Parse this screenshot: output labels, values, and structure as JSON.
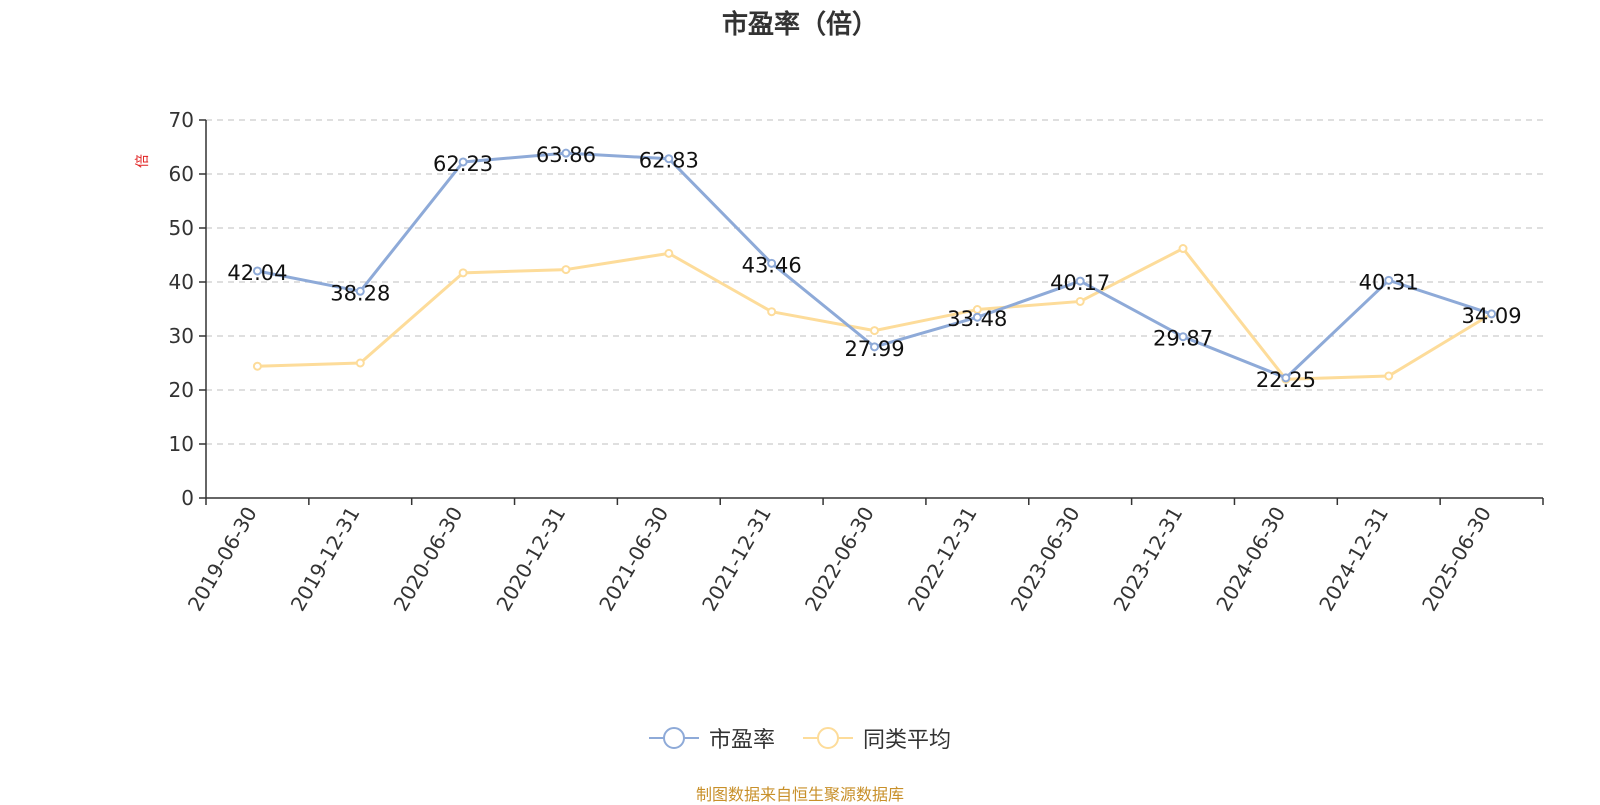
{
  "chart_data": {
    "type": "line",
    "title": "市盈率（倍）",
    "ylabel": "倍",
    "ylim": [
      0,
      70
    ],
    "yticks": [
      0,
      10,
      20,
      30,
      40,
      50,
      60,
      70
    ],
    "grid": true,
    "categories": [
      "2019-06-30",
      "2019-12-31",
      "2020-06-30",
      "2020-12-31",
      "2021-06-30",
      "2021-12-31",
      "2022-06-30",
      "2022-12-31",
      "2023-06-30",
      "2023-12-31",
      "2024-06-30",
      "2024-12-31",
      "2025-06-30"
    ],
    "series": [
      {
        "name": "市盈率",
        "color": "#8eaad8",
        "show_labels": true,
        "values": [
          42.04,
          38.28,
          62.23,
          63.86,
          62.83,
          43.46,
          27.99,
          33.48,
          40.17,
          29.87,
          22.25,
          40.31,
          34.09
        ]
      },
      {
        "name": "同类平均",
        "color": "#fddc9a",
        "show_labels": false,
        "values": [
          24.4,
          25.0,
          41.7,
          42.3,
          45.3,
          34.5,
          31.0,
          34.9,
          36.4,
          46.2,
          22.0,
          22.6,
          34.1
        ]
      }
    ],
    "legend_position": "bottom-center"
  },
  "source_note": "制图数据来自恒生聚源数据库"
}
